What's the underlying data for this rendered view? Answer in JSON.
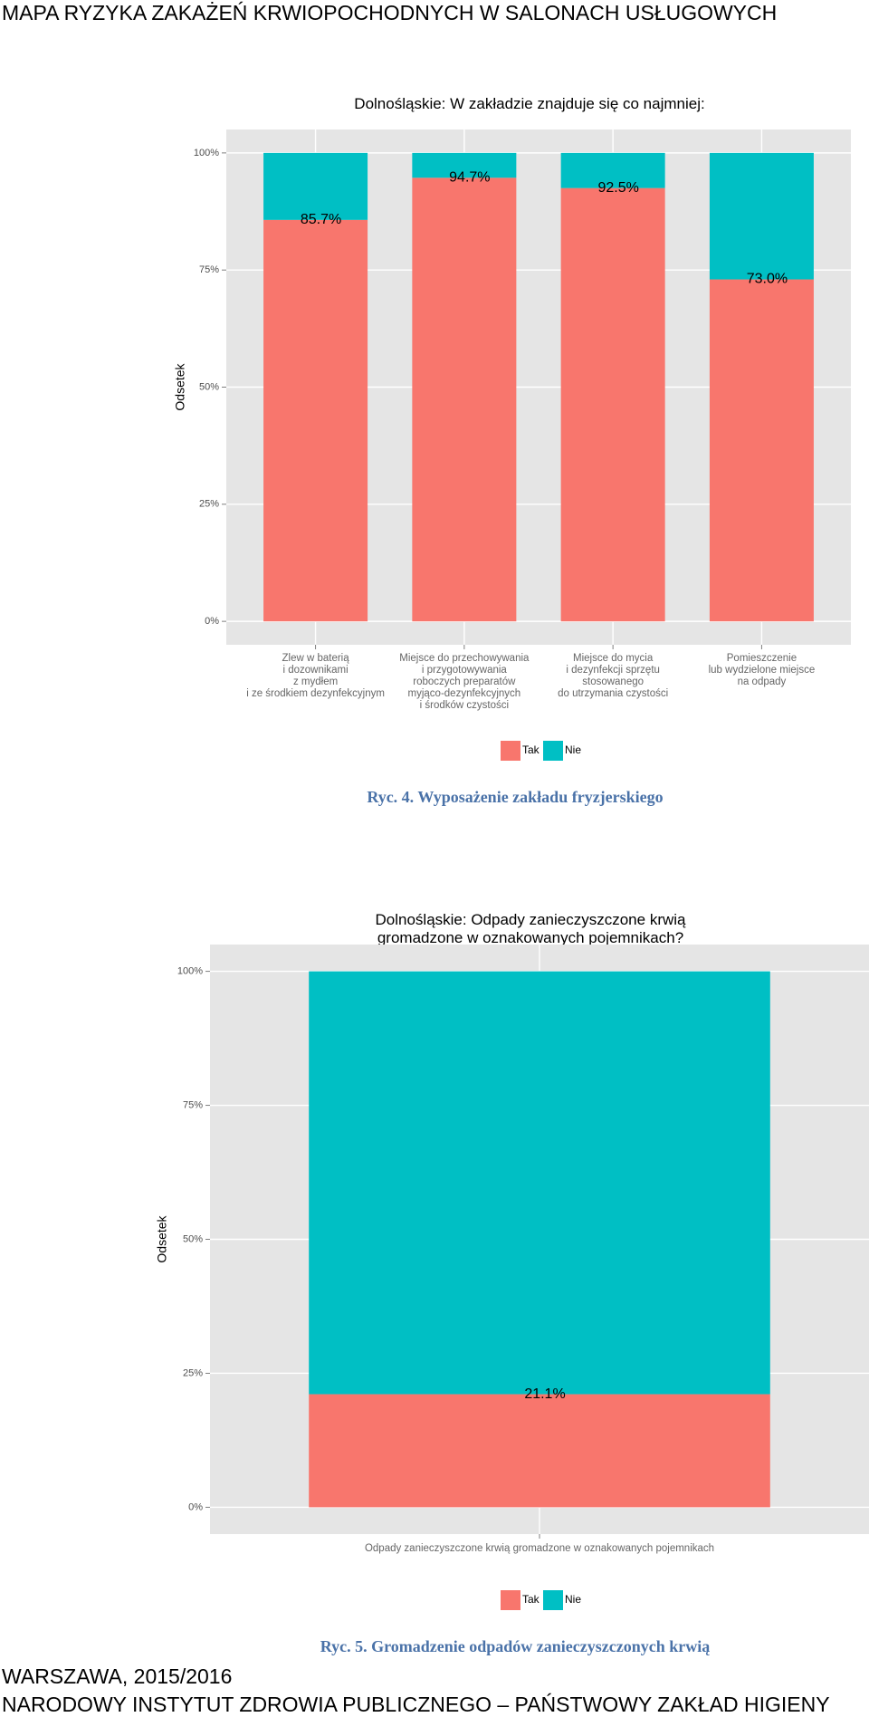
{
  "header": "MAPA RYZYKA ZAKAŻEŃ KRWIOPOCHODNYCH W SALONACH USŁUGOWYCH",
  "chart_data": [
    {
      "type": "stacked_bar",
      "title": "Dolnośląskie: W zakładzie znajduje się co najmniej:",
      "ylabel": "Odsetek",
      "categories": [
        "Zlew w baterią\ni dozownikami\nz mydłem\ni ze środkiem dezynfekcyjnym",
        "Miejsce do przechowywania\ni przygotowywania\nroboczych preparatów\nmyjąco-dezynfekcyjnych\ni środków czystości",
        "Miejsce do mycia\ni dezynfekcji sprzętu\nstosowanego\ndo utrzymania czystości",
        "Pomieszczenie\nlub wydzielone miejsce\nna odpady"
      ],
      "series": [
        {
          "name": "Tak",
          "color": "#f8766d",
          "values": [
            85.7,
            94.7,
            92.5,
            73.0
          ],
          "value_labels": [
            "85.7%",
            "94.7%",
            "92.5%",
            "73.0%"
          ]
        },
        {
          "name": "Nie",
          "color": "#00bfc4",
          "values": [
            14.3,
            5.3,
            7.5,
            27.0
          ]
        }
      ],
      "ylim": [
        -5,
        105
      ],
      "yticks": [
        {
          "value": 0,
          "label": "0%"
        },
        {
          "value": 25,
          "label": "25%"
        },
        {
          "value": 50,
          "label": "50%"
        },
        {
          "value": 75,
          "label": "75%"
        },
        {
          "value": 100,
          "label": "100%"
        }
      ],
      "grid": true,
      "caption": "Ryc. 4. Wyposażenie zakładu fryzjerskiego"
    },
    {
      "type": "stacked_bar",
      "title": "Dolnośląskie: Odpady zanieczyszczone krwią\ngromadzone w oznakowanych pojemnikach?",
      "ylabel": "Odsetek",
      "categories": [
        "Odpady zanieczyszczone krwią gromadzone w oznakowanych pojemnikach"
      ],
      "series": [
        {
          "name": "Tak",
          "color": "#f8766d",
          "values": [
            21.1
          ],
          "value_labels": [
            "21.1%"
          ]
        },
        {
          "name": "Nie",
          "color": "#00bfc4",
          "values": [
            78.9
          ]
        }
      ],
      "ylim": [
        -5,
        105
      ],
      "yticks": [
        {
          "value": 0,
          "label": "0%"
        },
        {
          "value": 25,
          "label": "25%"
        },
        {
          "value": 50,
          "label": "50%"
        },
        {
          "value": 75,
          "label": "75%"
        },
        {
          "value": 100,
          "label": "100%"
        }
      ],
      "grid": true,
      "caption": "Ryc. 5. Gromadzenie odpadów zanieczyszczonych krwią"
    }
  ],
  "footer": [
    "WARSZAWA, 2015/2016",
    "NARODOWY INSTYTUT ZDROWIA PUBLICZNEGO – PAŃSTWOWY ZAKŁAD HIGIENY"
  ]
}
